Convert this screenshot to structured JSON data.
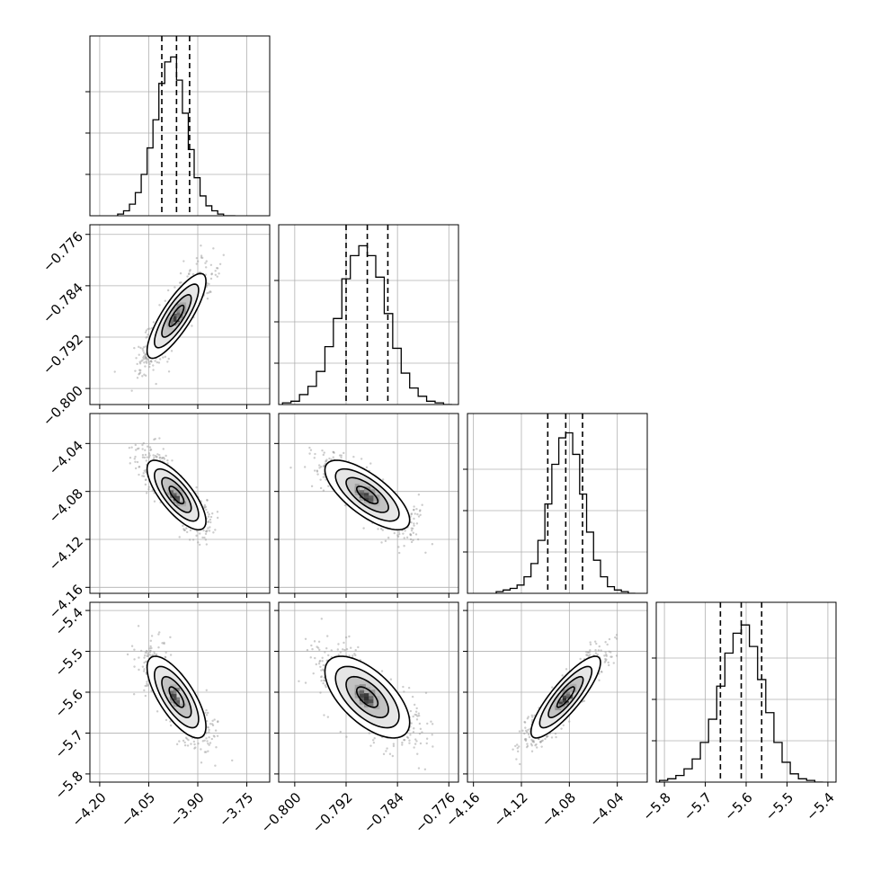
{
  "chart_data": {
    "type": "corner",
    "parameters": [
      {
        "ticks": [
          -4.2,
          -4.05,
          -3.9,
          -3.75
        ],
        "tick_labels": [
          "−4.20",
          "−4.05",
          "−3.90",
          "−3.75"
        ],
        "range": [
          -4.23,
          -3.68
        ],
        "quantiles": [
          -4.01,
          -3.965,
          -3.925
        ],
        "median": -3.965,
        "sigma": 0.045,
        "hist_counts": [
          1,
          3,
          7,
          14,
          25,
          41,
          58,
          80,
          93,
          96,
          82,
          62,
          40,
          23,
          12,
          6,
          3,
          1,
          0,
          0
        ],
        "hist_max": 100
      },
      {
        "ticks": [
          -0.8,
          -0.792,
          -0.784,
          -0.776
        ],
        "tick_labels": [
          "−0.800",
          "−0.792",
          "−0.784",
          "−0.776"
        ],
        "range": [
          -0.8025,
          -0.7745
        ],
        "quantiles": [
          -0.792,
          -0.7887,
          -0.7855
        ],
        "median": -0.7887,
        "sigma": 0.0033,
        "hist_counts": [
          1,
          2,
          6,
          11,
          20,
          35,
          52,
          76,
          90,
          96,
          90,
          77,
          55,
          34,
          19,
          10,
          5,
          2,
          1,
          0
        ],
        "hist_max": 100
      },
      {
        "ticks": [
          -4.16,
          -4.12,
          -4.08,
          -4.04
        ],
        "tick_labels": [
          "−4.16",
          "−4.12",
          "−4.08",
          "−4.04"
        ],
        "range": [
          -4.165,
          -4.015
        ],
        "quantiles": [
          -4.098,
          -4.083,
          -4.069
        ],
        "median": -4.083,
        "sigma": 0.0145,
        "hist_counts": [
          1,
          2,
          3,
          5,
          10,
          18,
          32,
          54,
          78,
          94,
          97,
          84,
          60,
          37,
          20,
          10,
          4,
          2,
          1,
          0
        ],
        "hist_max": 100
      },
      {
        "ticks": [
          -5.8,
          -5.7,
          -5.6,
          -5.5,
          -5.4
        ],
        "tick_labels": [
          "−5.8",
          "−5.7",
          "−5.6",
          "−5.5",
          "−5.4"
        ],
        "range": [
          -5.82,
          -5.38
        ],
        "quantiles": [
          -5.663,
          -5.612,
          -5.562
        ],
        "median": -5.612,
        "sigma": 0.05,
        "hist_counts": [
          1,
          2,
          4,
          8,
          14,
          24,
          38,
          58,
          78,
          90,
          95,
          82,
          62,
          42,
          24,
          12,
          5,
          2,
          1,
          0
        ],
        "hist_max": 100
      }
    ],
    "correlations": [
      [
        1.0,
        0.82,
        -0.75,
        -0.72
      ],
      [
        0.82,
        1.0,
        -0.72,
        -0.62
      ],
      [
        -0.75,
        -0.72,
        1.0,
        0.85
      ],
      [
        -0.72,
        -0.62,
        0.85,
        1.0
      ]
    ],
    "contour_levels_sigma": [
      0.5,
      1.0,
      1.5,
      2.0
    ],
    "grid": true,
    "quantile_lines": "dashed",
    "colors": {
      "line": "#000000",
      "grid": "#b0b0b0",
      "points": "#9a9a9a",
      "density_light": "#ffffff",
      "density_dark": "#000000"
    }
  }
}
